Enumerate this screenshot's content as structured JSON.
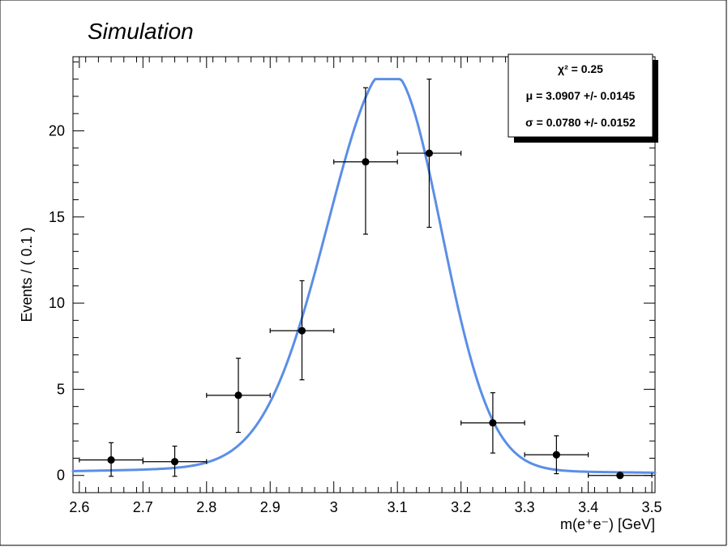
{
  "chart_data": {
    "type": "scatter",
    "title": "Simulation",
    "xlabel": "m(e⁺e⁻) [GeV]",
    "ylabel": "Events / ( 0.1 )",
    "xlim": [
      2.59,
      3.505
    ],
    "ylim": [
      -1.0,
      24.3
    ],
    "x_ticks": [
      2.6,
      2.7,
      2.8,
      2.9,
      3.0,
      3.1,
      3.2,
      3.3,
      3.4,
      3.5
    ],
    "x_tick_labels": [
      "2.6",
      "2.7",
      "2.8",
      "2.9",
      "3",
      "3.1",
      "3.2",
      "3.3",
      "3.4",
      "3.5"
    ],
    "y_ticks": [
      0,
      5,
      10,
      15,
      20
    ],
    "y_tick_labels": [
      "0",
      "5",
      "10",
      "15",
      "20"
    ],
    "series": [
      {
        "kind": "data-points",
        "x": [
          2.65,
          2.75,
          2.85,
          2.95,
          3.05,
          3.15,
          3.25,
          3.35,
          3.45
        ],
        "y": [
          0.9,
          0.8,
          4.65,
          8.4,
          18.2,
          18.7,
          3.05,
          1.2,
          0.0
        ],
        "xerr": [
          0.05,
          0.05,
          0.05,
          0.05,
          0.05,
          0.05,
          0.05,
          0.05,
          0.05
        ],
        "yerr_low": [
          0.95,
          0.85,
          2.15,
          2.85,
          4.2,
          4.3,
          1.75,
          1.1,
          0.0
        ],
        "yerr_high": [
          1.0,
          0.9,
          2.15,
          2.9,
          4.3,
          4.3,
          1.75,
          1.1,
          0.0
        ],
        "color": "#000000"
      },
      {
        "kind": "fit-curve",
        "color": "#5b8ee6",
        "model": "crystal-ball-like peak",
        "peak_x": 3.0907,
        "peak_y": 23.0,
        "sigma_left": 0.1,
        "sigma_right": 0.0782,
        "tail_base": 0.07,
        "tail_amplitude": 2.35,
        "tail_decay": 0.39,
        "tail_offset": 3.0907
      }
    ],
    "stats_box": {
      "placement": "top-right",
      "lines": [
        "χ² = 0.25",
        "μ = 3.0907 +/- 0.0145",
        "σ = 0.0780 +/- 0.0152"
      ]
    },
    "grid": false
  }
}
